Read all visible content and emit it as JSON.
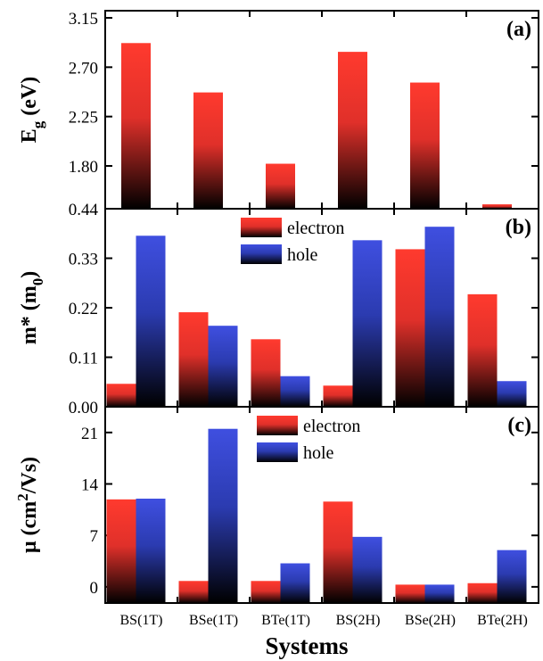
{
  "chart_data": [
    {
      "type": "bar",
      "panel_tag": "(a)",
      "ylabel": "E",
      "ylabel_sub": "g",
      "ylabel_suffix": " (eV)",
      "categories": [
        "BS(1T)",
        "BSe(1T)",
        "BTe(1T)",
        "BS(2H)",
        "BSe(2H)",
        "BTe(2H)"
      ],
      "series": [
        {
          "values": [
            2.92,
            2.47,
            1.82,
            2.84,
            2.56,
            0.58
          ]
        }
      ],
      "yticks": [
        "0.44",
        "1.80",
        "2.25",
        "2.70",
        "3.15"
      ],
      "legend": null
    },
    {
      "type": "bar",
      "panel_tag": "(b)",
      "ylabel": "m* (m",
      "ylabel_sub": "0",
      "ylabel_suffix": ")",
      "categories": [
        "BS(1T)",
        "BSe(1T)",
        "BTe(1T)",
        "BS(2H)",
        "BSe(2H)",
        "BTe(2H)"
      ],
      "series": [
        {
          "name": "electron",
          "values": [
            0.051,
            0.21,
            0.15,
            0.047,
            0.35,
            0.25
          ]
        },
        {
          "name": "hole",
          "values": [
            0.38,
            0.18,
            0.068,
            0.37,
            0.4,
            0.057
          ]
        }
      ],
      "yticks": [
        "0.00",
        "0.11",
        "0.22",
        "0.33"
      ],
      "ylim": [
        0,
        0.44
      ],
      "legend": "top-center"
    },
    {
      "type": "bar",
      "panel_tag": "(c)",
      "ylabel": "μ (cm",
      "ylabel_sup": "2",
      "ylabel_suffix": "/Vs)",
      "categories": [
        "BS(1T)",
        "BSe(1T)",
        "BTe(1T)",
        "BS(2H)",
        "BSe(2H)",
        "BTe(2H)"
      ],
      "series": [
        {
          "name": "electron",
          "values": [
            11.9,
            0.8,
            0.8,
            11.6,
            0.3,
            0.5
          ]
        },
        {
          "name": "hole",
          "values": [
            12.0,
            21.5,
            3.2,
            6.8,
            0.3,
            5.0
          ]
        }
      ],
      "yticks": [
        "0",
        "7",
        "14",
        "21"
      ],
      "ylim": [
        -2.2,
        24.5
      ],
      "legend": "top-center"
    }
  ],
  "xlabel": "Systems",
  "colors": {
    "electron_top": "#ff3a2e",
    "electron_bottom": "#000000",
    "hole_top": "#3f4fe0",
    "hole_bottom": "#000000"
  }
}
